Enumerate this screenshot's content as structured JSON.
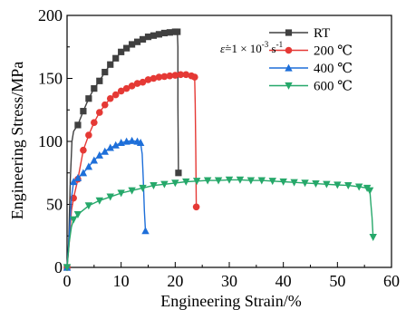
{
  "chart_data": {
    "type": "line",
    "xlabel": "Engineering Strain/%",
    "ylabel": "Engineering Stress/MPa",
    "xlim": [
      0,
      60
    ],
    "ylim": [
      0,
      200
    ],
    "x_ticks": [
      "0",
      "10",
      "20",
      "30",
      "40",
      "50",
      "60"
    ],
    "y_ticks": [
      "0",
      "50",
      "100",
      "150",
      "200"
    ],
    "legend_position": "top-right",
    "annotation": {
      "epsilon": "ε̇",
      "equals": "=1 × 10",
      "exponent": "-3",
      "unit": " s",
      "unit_exponent": "-1"
    },
    "series": [
      {
        "name": "RT",
        "color": "#404040",
        "marker": "square",
        "points": [
          [
            0,
            0
          ],
          [
            0.3,
            20
          ],
          [
            0.6,
            70
          ],
          [
            0.9,
            100
          ],
          [
            1.2,
            108
          ],
          [
            2,
            113
          ],
          [
            3,
            124
          ],
          [
            4,
            134
          ],
          [
            5,
            142
          ],
          [
            6,
            148
          ],
          [
            7,
            155
          ],
          [
            8,
            161
          ],
          [
            9,
            166
          ],
          [
            10,
            171
          ],
          [
            11,
            174
          ],
          [
            12,
            177
          ],
          [
            13,
            179
          ],
          [
            14,
            181
          ],
          [
            15,
            183
          ],
          [
            16,
            184
          ],
          [
            17,
            185
          ],
          [
            18,
            186
          ],
          [
            19,
            186.5
          ],
          [
            20,
            187
          ],
          [
            20.4,
            187
          ],
          [
            20.5,
            175
          ],
          [
            20.5,
            130
          ],
          [
            20.6,
            75
          ]
        ]
      },
      {
        "name": "200 ℃",
        "color": "#e53935",
        "marker": "circle",
        "points": [
          [
            0,
            0
          ],
          [
            0.4,
            20
          ],
          [
            0.8,
            45
          ],
          [
            1.2,
            55
          ],
          [
            2,
            70
          ],
          [
            3,
            93
          ],
          [
            4,
            105
          ],
          [
            5,
            115
          ],
          [
            6,
            123
          ],
          [
            7,
            129
          ],
          [
            8,
            134
          ],
          [
            9,
            137
          ],
          [
            10,
            140
          ],
          [
            11,
            142
          ],
          [
            12,
            144
          ],
          [
            13,
            146
          ],
          [
            14,
            147
          ],
          [
            15,
            149
          ],
          [
            16,
            150
          ],
          [
            17,
            151
          ],
          [
            18,
            151.5
          ],
          [
            19,
            152
          ],
          [
            20,
            152.5
          ],
          [
            21,
            153
          ],
          [
            22,
            153
          ],
          [
            23,
            152
          ],
          [
            23.6,
            151
          ],
          [
            23.7,
            130
          ],
          [
            23.8,
            95
          ],
          [
            23.9,
            48
          ]
        ]
      },
      {
        "name": "400 ℃",
        "color": "#1e6fd9",
        "marker": "triangle-up",
        "points": [
          [
            0,
            0
          ],
          [
            0.4,
            25
          ],
          [
            0.8,
            55
          ],
          [
            1.2,
            68
          ],
          [
            2,
            71
          ],
          [
            3,
            75
          ],
          [
            4,
            80
          ],
          [
            5,
            85
          ],
          [
            6,
            89
          ],
          [
            7,
            92
          ],
          [
            8,
            95
          ],
          [
            9,
            97
          ],
          [
            10,
            99
          ],
          [
            11,
            100
          ],
          [
            12,
            100.5
          ],
          [
            13,
            100
          ],
          [
            13.6,
            99
          ],
          [
            13.9,
            90
          ],
          [
            14.1,
            70
          ],
          [
            14.3,
            45
          ],
          [
            14.5,
            29
          ]
        ]
      },
      {
        "name": "600 ℃",
        "color": "#26a86a",
        "marker": "triangle-down",
        "points": [
          [
            0,
            0
          ],
          [
            0.4,
            20
          ],
          [
            0.8,
            32
          ],
          [
            1.2,
            38
          ],
          [
            2,
            42
          ],
          [
            4,
            49
          ],
          [
            6,
            53
          ],
          [
            8,
            56
          ],
          [
            10,
            59
          ],
          [
            12,
            61
          ],
          [
            14,
            63
          ],
          [
            16,
            65
          ],
          [
            18,
            66
          ],
          [
            20,
            67
          ],
          [
            22,
            68
          ],
          [
            24,
            68.5
          ],
          [
            26,
            69
          ],
          [
            28,
            69
          ],
          [
            30,
            69.5
          ],
          [
            32,
            69.5
          ],
          [
            34,
            69
          ],
          [
            36,
            69
          ],
          [
            38,
            68.5
          ],
          [
            40,
            68
          ],
          [
            42,
            67.5
          ],
          [
            44,
            67
          ],
          [
            46,
            66.5
          ],
          [
            48,
            66
          ],
          [
            50,
            65.5
          ],
          [
            52,
            65
          ],
          [
            54,
            64
          ],
          [
            55.5,
            63
          ],
          [
            56,
            61
          ],
          [
            56.2,
            50
          ],
          [
            56.4,
            40
          ],
          [
            56.6,
            24
          ]
        ]
      }
    ]
  }
}
